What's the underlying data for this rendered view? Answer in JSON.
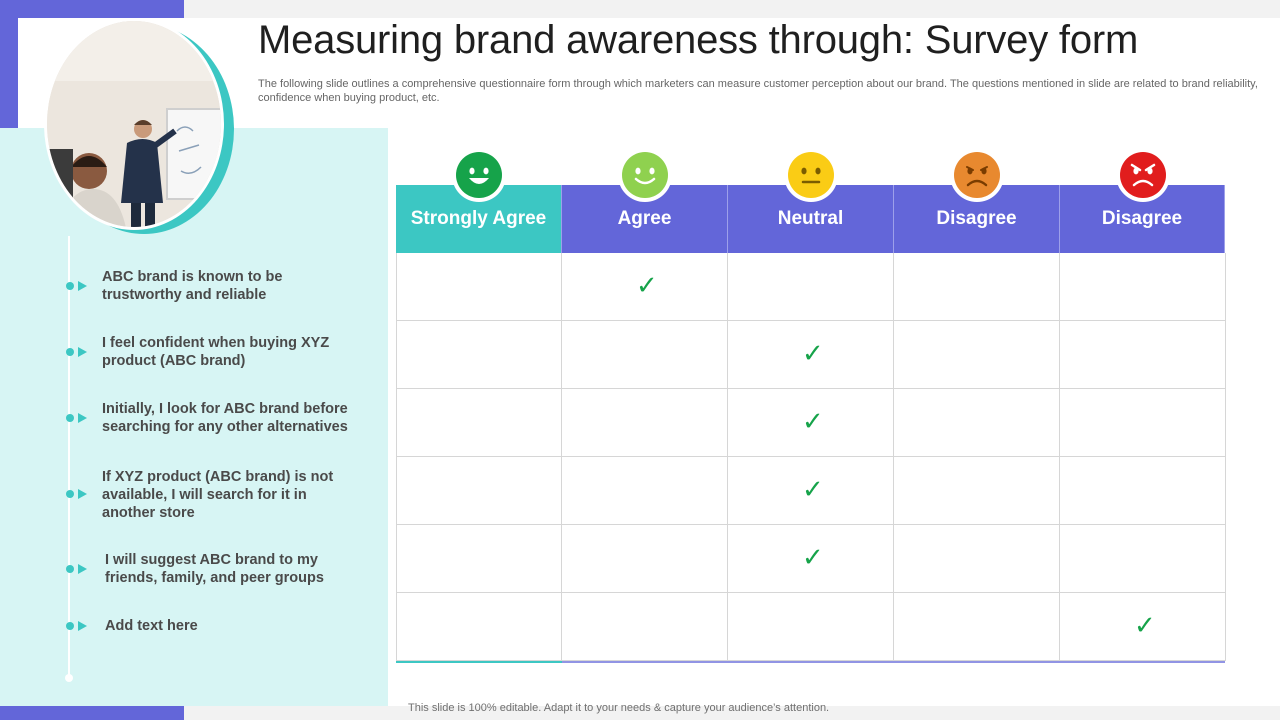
{
  "slide": {
    "title": "Measuring brand awareness through: Survey form",
    "subtitle": "The following slide outlines a comprehensive questionnaire form through which marketers can measure customer perception about our brand. The questions mentioned in slide are related to brand reliability, confidence when buying product, etc.",
    "footer": "This slide is 100% editable. Adapt it to your needs & capture your audience’s attention."
  },
  "statements": [
    "ABC brand is known to be trustworthy and reliable",
    "I feel confident when buying XYZ product (ABC brand)",
    "Initially, I look for ABC brand before searching for any other alternatives",
    "If XYZ product (ABC brand) is not available, I will search for it in another store",
    "I will suggest ABC brand to my friends, family, and peer groups",
    "Add text here"
  ],
  "columns": [
    {
      "label": "Strongly Agree",
      "icon": "very-happy-face-icon",
      "color": "#16a34a",
      "header_bg": "#3cc7c3"
    },
    {
      "label": "Agree",
      "icon": "happy-face-icon",
      "color": "#8fd14f",
      "header_bg": "#6366d9"
    },
    {
      "label": "Neutral",
      "icon": "neutral-face-icon",
      "color": "#facc15",
      "header_bg": "#6366d9"
    },
    {
      "label": "Disagree",
      "icon": "unhappy-face-icon",
      "color": "#e8892f",
      "header_bg": "#6366d9"
    },
    {
      "label": "Disagree",
      "icon": "angry-face-icon",
      "color": "#e11d1d",
      "header_bg": "#6366d9"
    }
  ],
  "answers": [
    1,
    2,
    2,
    2,
    2,
    4
  ],
  "check_symbol": "✓"
}
